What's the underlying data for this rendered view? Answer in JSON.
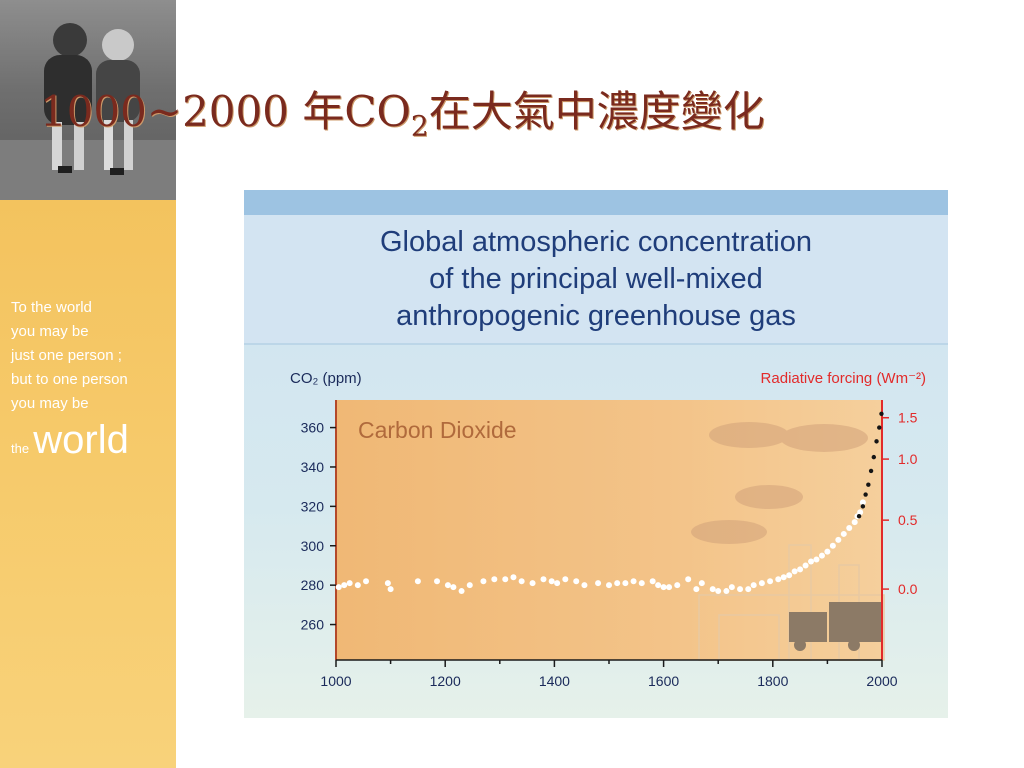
{
  "slide": {
    "title_prefix": "1000~2000 年CO",
    "title_sub": "2",
    "title_suffix": "在大氣中濃度變化"
  },
  "sidebar": {
    "quote_lines": [
      "To the world",
      "you may be",
      "just one person ;",
      "but to one person",
      "you may be"
    ],
    "the_word": "the",
    "world_word": "world"
  },
  "chart_data": {
    "type": "scatter",
    "title_lines": [
      "Global atmospheric concentration",
      "of the principal well-mixed",
      "anthropogenic greenhouse gas"
    ],
    "panel_label": "Carbon Dioxide",
    "ylabel_left": "CO₂ (ppm)",
    "ylabel_right": "Radiative forcing (Wm⁻²)",
    "xlim": [
      1000,
      2000
    ],
    "ylim": [
      242,
      374
    ],
    "x_ticks": [
      1000,
      1200,
      1400,
      1600,
      1800,
      2000
    ],
    "y_ticks_left": [
      260,
      280,
      300,
      320,
      340,
      360
    ],
    "y_ticks_right": [
      {
        "label": "1.5",
        "ppm": 365
      },
      {
        "label": "1.0",
        "ppm": 344
      },
      {
        "label": "0.5",
        "ppm": 313
      },
      {
        "label": "0.0",
        "ppm": 278
      }
    ],
    "series": [
      {
        "points": [
          [
            1005,
            279
          ],
          [
            1015,
            280
          ],
          [
            1025,
            281
          ],
          [
            1040,
            280
          ],
          [
            1055,
            282
          ],
          [
            1095,
            281
          ],
          [
            1100,
            278
          ],
          [
            1150,
            282
          ],
          [
            1185,
            282
          ],
          [
            1205,
            280
          ],
          [
            1215,
            279
          ],
          [
            1230,
            277
          ],
          [
            1245,
            280
          ],
          [
            1270,
            282
          ],
          [
            1290,
            283
          ],
          [
            1310,
            283
          ],
          [
            1325,
            284
          ],
          [
            1340,
            282
          ],
          [
            1360,
            281
          ],
          [
            1380,
            283
          ],
          [
            1395,
            282
          ],
          [
            1405,
            281
          ],
          [
            1420,
            283
          ],
          [
            1440,
            282
          ],
          [
            1455,
            280
          ],
          [
            1480,
            281
          ],
          [
            1500,
            280
          ],
          [
            1515,
            281
          ],
          [
            1530,
            281
          ],
          [
            1545,
            282
          ],
          [
            1560,
            281
          ],
          [
            1580,
            282
          ],
          [
            1590,
            280
          ],
          [
            1600,
            279
          ],
          [
            1610,
            279
          ],
          [
            1625,
            280
          ],
          [
            1645,
            283
          ],
          [
            1660,
            278
          ],
          [
            1670,
            281
          ],
          [
            1690,
            278
          ],
          [
            1700,
            277
          ],
          [
            1715,
            277
          ],
          [
            1725,
            279
          ],
          [
            1740,
            278
          ],
          [
            1755,
            278
          ],
          [
            1765,
            280
          ],
          [
            1780,
            281
          ],
          [
            1795,
            282
          ],
          [
            1810,
            283
          ],
          [
            1820,
            284
          ],
          [
            1830,
            285
          ],
          [
            1840,
            287
          ],
          [
            1850,
            288
          ],
          [
            1860,
            290
          ],
          [
            1870,
            292
          ],
          [
            1880,
            293
          ],
          [
            1890,
            295
          ],
          [
            1900,
            297
          ],
          [
            1910,
            300
          ],
          [
            1920,
            303
          ],
          [
            1930,
            306
          ],
          [
            1940,
            309
          ],
          [
            1950,
            312
          ],
          [
            1955,
            315
          ],
          [
            1960,
            317
          ],
          [
            1965,
            322
          ]
        ]
      },
      {
        "points": [
          [
            1958,
            315
          ],
          [
            1965,
            320
          ],
          [
            1970,
            326
          ],
          [
            1975,
            331
          ],
          [
            1980,
            338
          ],
          [
            1985,
            345
          ],
          [
            1990,
            353
          ],
          [
            1995,
            360
          ],
          [
            1999,
            367
          ]
        ]
      }
    ]
  }
}
